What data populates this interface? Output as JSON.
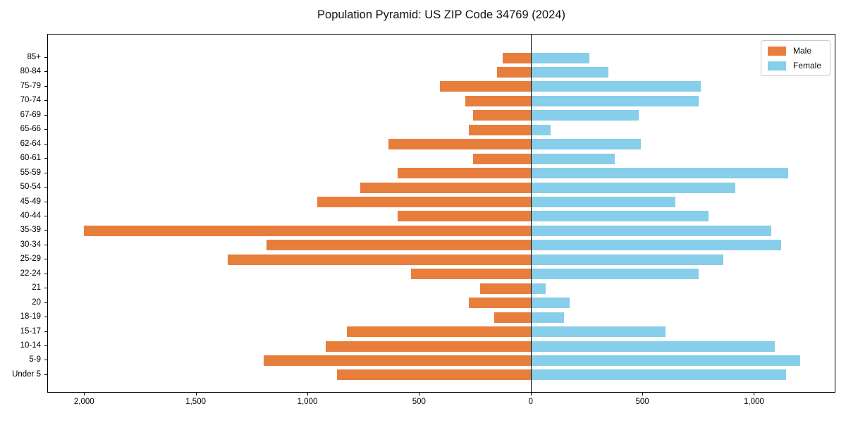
{
  "chart_data": {
    "type": "bar",
    "variant": "population-pyramid",
    "title": "Population Pyramid: US ZIP Code 34769 (2024)",
    "categories_top_to_bottom": [
      "85+",
      "80-84",
      "75-79",
      "70-74",
      "67-69",
      "65-66",
      "62-64",
      "60-61",
      "55-59",
      "50-54",
      "45-49",
      "40-44",
      "35-39",
      "30-34",
      "25-29",
      "22-24",
      "21",
      "20",
      "18-19",
      "15-17",
      "10-14",
      "5-9",
      "Under 5"
    ],
    "series": [
      {
        "name": "Male",
        "side": "left",
        "color": "#e87e3c",
        "values": [
          130,
          155,
          410,
          295,
          260,
          280,
          640,
          260,
          600,
          765,
          960,
          600,
          2005,
          1185,
          1360,
          540,
          230,
          280,
          165,
          825,
          920,
          1200,
          870
        ]
      },
      {
        "name": "Female",
        "side": "right",
        "color": "#87ceeb",
        "values": [
          260,
          345,
          760,
          750,
          480,
          85,
          490,
          375,
          1150,
          915,
          645,
          795,
          1075,
          1120,
          860,
          750,
          65,
          170,
          145,
          600,
          1090,
          1205,
          1140
        ]
      }
    ],
    "x_axis": {
      "tick_values": [
        -2000,
        -1500,
        -1000,
        -500,
        0,
        500,
        1000
      ],
      "tick_labels": [
        "2,000",
        "1,500",
        "1,000",
        "500",
        "0",
        "500",
        "1,000"
      ],
      "xlim": [
        -2165,
        1365
      ]
    },
    "y_axis": {
      "tick_labels": [
        "85+",
        "80-84",
        "75-79",
        "70-74",
        "67-69",
        "65-66",
        "62-64",
        "60-61",
        "55-59",
        "50-54",
        "45-49",
        "40-44",
        "35-39",
        "30-34",
        "25-29",
        "22-24",
        "21",
        "20",
        "18-19",
        "15-17",
        "10-14",
        "5-9",
        "Under 5"
      ]
    },
    "legend": {
      "position": "upper-right",
      "entries": [
        "Male",
        "Female"
      ]
    },
    "grid": false,
    "zero_line_color": "#000000"
  }
}
